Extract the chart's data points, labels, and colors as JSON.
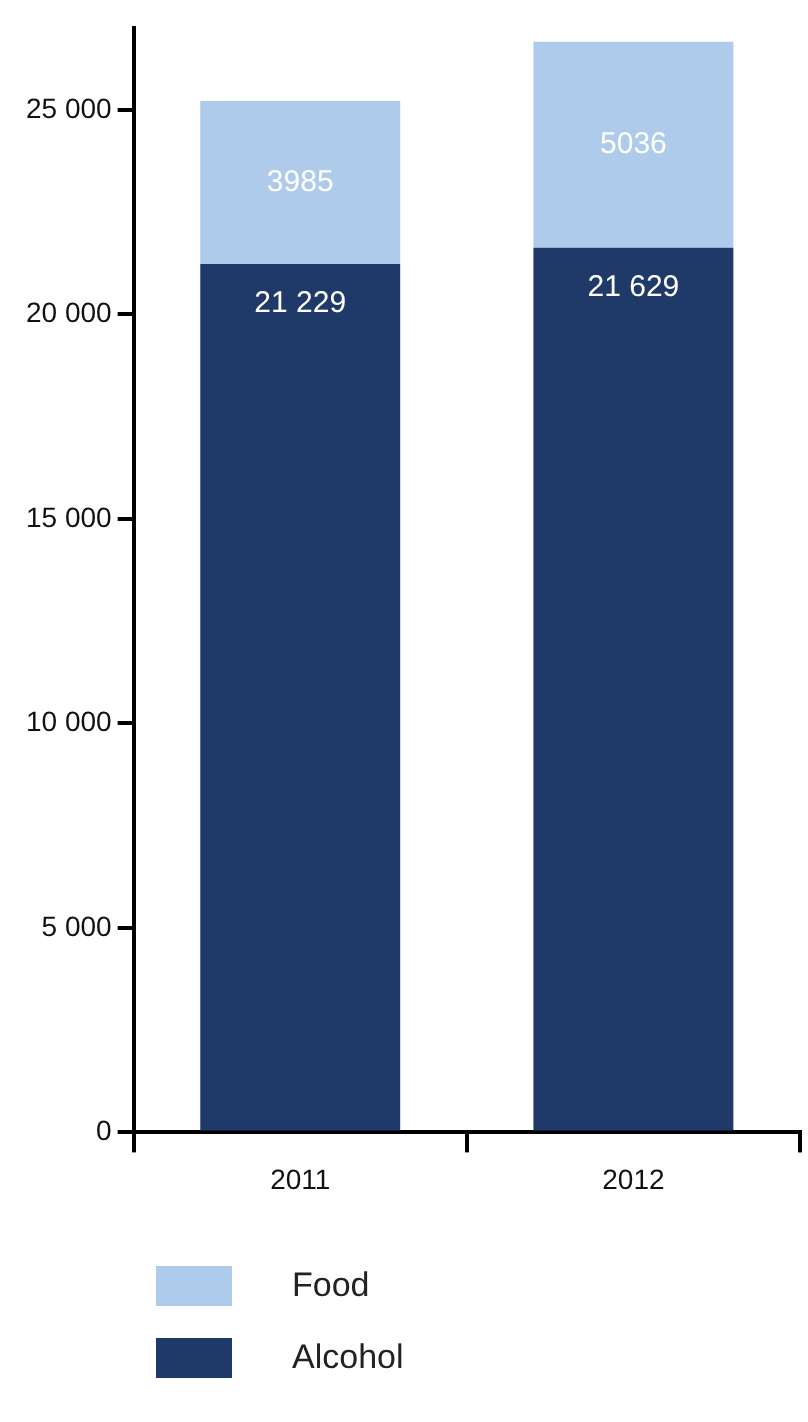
{
  "chart_data": {
    "type": "bar",
    "stacked": true,
    "categories": [
      "2011",
      "2012"
    ],
    "series": [
      {
        "name": "Alcohol",
        "color": "#1f3a68",
        "values": [
          21229,
          21629
        ],
        "value_labels": [
          "21 229",
          "21 629"
        ]
      },
      {
        "name": "Food",
        "color": "#aecbeb",
        "values": [
          3985,
          5036
        ],
        "value_labels": [
          "3985",
          "5036"
        ]
      }
    ],
    "ylim": [
      0,
      27000
    ],
    "yticks": [
      0,
      {
        "value": 5000,
        "label": "5 000"
      },
      {
        "value": 10000,
        "label": "10 000"
      },
      {
        "value": 15000,
        "label": "15 000"
      },
      {
        "value": 20000,
        "label": "20 000"
      },
      {
        "value": 25000,
        "label": "25 000"
      }
    ],
    "grid": false,
    "legend": "bottom"
  }
}
